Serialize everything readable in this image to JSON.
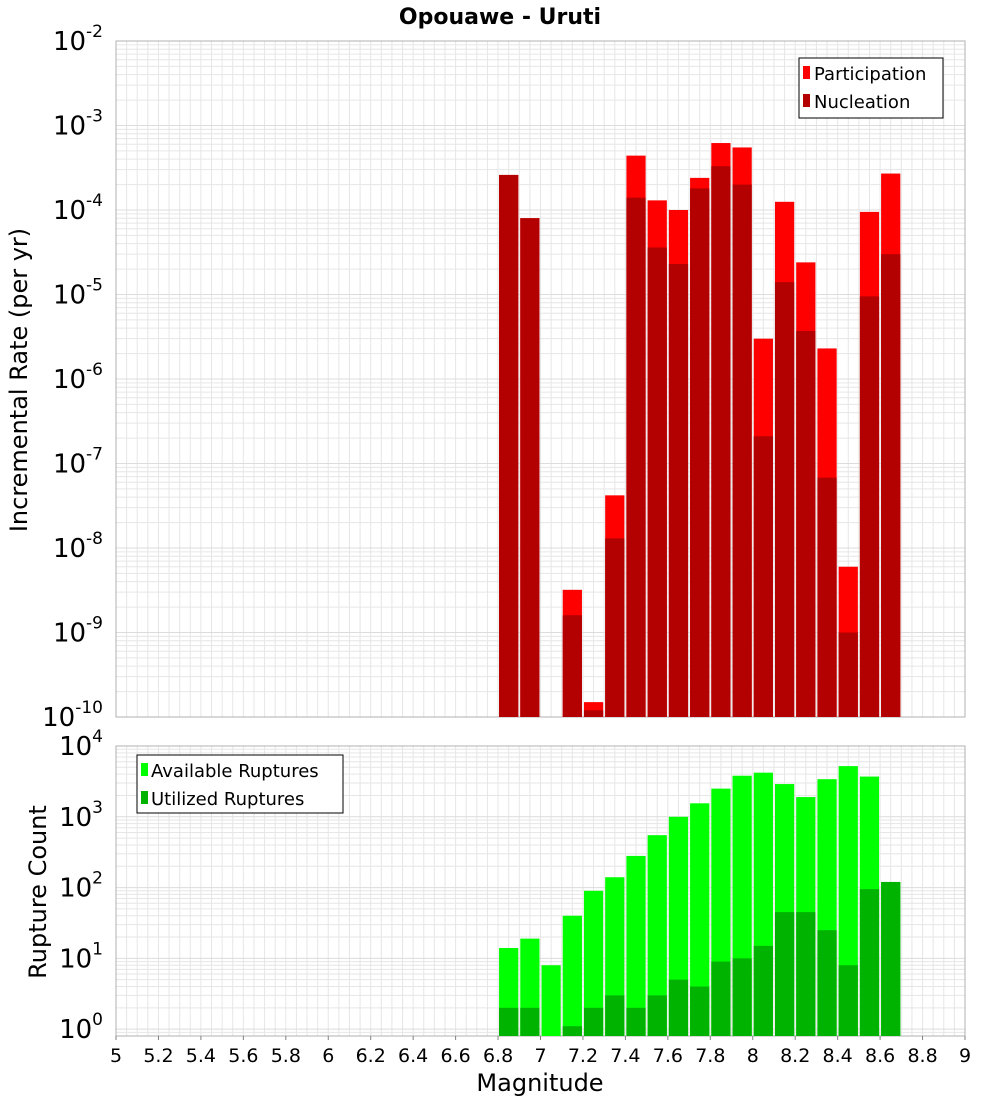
{
  "title": "Opouawe - Uruti",
  "colors": {
    "participation": "#ff0000",
    "nucleation": "#b30000",
    "available": "#00ff00",
    "utilized": "#00b300",
    "grid": "#e6e6e6",
    "frame": "#b0b0b0"
  },
  "chart_data": [
    {
      "type": "bar",
      "panel": "top",
      "title": "Opouawe - Uruti",
      "xlabel": "",
      "ylabel": "Incremental Rate (per yr)",
      "yscale": "log",
      "xlim": [
        5,
        9
      ],
      "ylim": [
        1e-10,
        0.01
      ],
      "grid": true,
      "legend_position": "top-right",
      "y_ticks": [
        {
          "base": "10",
          "exp": "-10",
          "value": 1e-10
        },
        {
          "base": "10",
          "exp": "-9",
          "value": 1e-09
        },
        {
          "base": "10",
          "exp": "-8",
          "value": 1e-08
        },
        {
          "base": "10",
          "exp": "-7",
          "value": 1e-07
        },
        {
          "base": "10",
          "exp": "-6",
          "value": 1e-06
        },
        {
          "base": "10",
          "exp": "-5",
          "value": 1e-05
        },
        {
          "base": "10",
          "exp": "-4",
          "value": 0.0001
        },
        {
          "base": "10",
          "exp": "-3",
          "value": 0.001
        },
        {
          "base": "10",
          "exp": "-2",
          "value": 0.01
        }
      ],
      "x": [
        6.85,
        6.95,
        7.05,
        7.15,
        7.25,
        7.35,
        7.45,
        7.55,
        7.65,
        7.75,
        7.85,
        7.95,
        8.05,
        8.15,
        8.25,
        8.35,
        8.45,
        8.55,
        8.65
      ],
      "series": [
        {
          "name": "Participation",
          "values": [
            0.00026,
            8e-05,
            null,
            3.2e-09,
            1.5e-10,
            4.2e-08,
            0.00044,
            0.00013,
            0.0001,
            0.00024,
            0.00062,
            0.00055,
            3e-06,
            0.000125,
            2.4e-05,
            2.3e-06,
            6e-09,
            9.5e-05,
            0.00027
          ]
        },
        {
          "name": "Nucleation",
          "values": [
            0.00026,
            8e-05,
            null,
            1.6e-09,
            1.2e-10,
            1.3e-08,
            0.00014,
            3.6e-05,
            2.3e-05,
            0.00018,
            0.00033,
            0.0002,
            2.1e-07,
            1.4e-05,
            3.7e-06,
            6.8e-08,
            1e-09,
            9.5e-06,
            3e-05
          ]
        }
      ]
    },
    {
      "type": "bar",
      "panel": "bottom",
      "xlabel": "Magnitude",
      "ylabel": "Rupture Count",
      "yscale": "log",
      "xlim": [
        5,
        9
      ],
      "ylim": [
        0.8,
        10000
      ],
      "grid": true,
      "legend_position": "top-left",
      "y_ticks": [
        {
          "base": "10",
          "exp": "0",
          "value": 1
        },
        {
          "base": "10",
          "exp": "1",
          "value": 10
        },
        {
          "base": "10",
          "exp": "2",
          "value": 100
        },
        {
          "base": "10",
          "exp": "3",
          "value": 1000
        },
        {
          "base": "10",
          "exp": "4",
          "value": 10000
        }
      ],
      "x_ticks": [
        "5",
        "5.2",
        "5.4",
        "5.6",
        "5.8",
        "6",
        "6.2",
        "6.4",
        "6.6",
        "6.8",
        "7",
        "7.2",
        "7.4",
        "7.6",
        "7.8",
        "8",
        "8.2",
        "8.4",
        "8.6",
        "8.8",
        "9"
      ],
      "x": [
        6.85,
        6.95,
        7.05,
        7.15,
        7.25,
        7.35,
        7.45,
        7.55,
        7.65,
        7.75,
        7.85,
        7.95,
        8.05,
        8.15,
        8.25,
        8.35,
        8.45,
        8.55,
        8.65
      ],
      "series": [
        {
          "name": "Available Ruptures",
          "values": [
            14,
            19,
            8,
            40,
            90,
            140,
            280,
            550,
            1000,
            1550,
            2500,
            3800,
            4200,
            2900,
            1900,
            3400,
            5200,
            3700,
            120
          ]
        },
        {
          "name": "Utilized Ruptures",
          "values": [
            2,
            2,
            null,
            1.1,
            2,
            3,
            2,
            3,
            5,
            4,
            9,
            10,
            15,
            45,
            45,
            25,
            8,
            95,
            120
          ]
        }
      ]
    }
  ]
}
